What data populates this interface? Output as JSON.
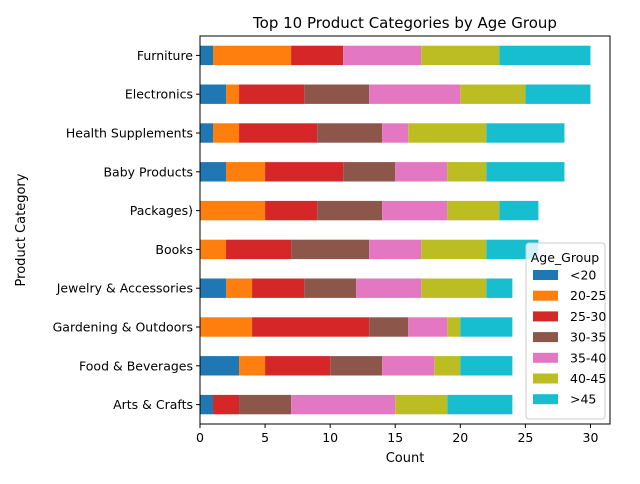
{
  "chart_data": {
    "type": "bar",
    "orientation": "horizontal",
    "stacked": true,
    "title": "Top 10 Product Categories by Age Group",
    "xlabel": "Count",
    "ylabel": "Product Category",
    "xlim": [
      0,
      31.5
    ],
    "xticks": [
      "0",
      "5",
      "10",
      "15",
      "20",
      "25",
      "30"
    ],
    "grid": false,
    "legend": {
      "title": "Age_Group",
      "placement": "bottom-right"
    },
    "categories": [
      "Furniture",
      "Electronics",
      "Health Supplements",
      "Baby Products",
      "Packages)",
      "Books",
      "Jewelry & Accessories",
      "Gardening & Outdoors",
      "Food & Beverages",
      "Arts & Crafts"
    ],
    "series": [
      {
        "name": "<20",
        "color": "#1f77b4",
        "values": [
          1,
          2,
          1,
          2,
          0,
          0,
          2,
          0,
          3,
          1
        ]
      },
      {
        "name": "20-25",
        "color": "#ff7f0e",
        "values": [
          6,
          1,
          2,
          3,
          5,
          2,
          2,
          4,
          2,
          0
        ]
      },
      {
        "name": "25-30",
        "color": "#d62728",
        "values": [
          4,
          5,
          6,
          6,
          4,
          5,
          4,
          9,
          5,
          2
        ]
      },
      {
        "name": "30-35",
        "color": "#8c564b",
        "values": [
          0,
          5,
          5,
          4,
          5,
          6,
          4,
          3,
          4,
          4
        ]
      },
      {
        "name": "35-40",
        "color": "#e377c2",
        "values": [
          6,
          7,
          2,
          4,
          5,
          4,
          5,
          3,
          4,
          8
        ]
      },
      {
        "name": "40-45",
        "color": "#bcbd22",
        "values": [
          6,
          5,
          6,
          3,
          4,
          5,
          5,
          1,
          2,
          4
        ]
      },
      {
        "name": ">45",
        "color": "#17becf",
        "values": [
          7,
          5,
          6,
          6,
          3,
          4,
          2,
          4,
          4,
          5
        ]
      }
    ]
  }
}
